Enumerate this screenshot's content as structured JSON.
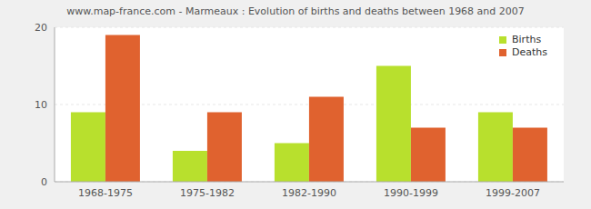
{
  "chart_data": {
    "type": "bar",
    "title": "www.map-france.com - Marmeaux : Evolution of births and deaths between 1968 and 2007",
    "categories": [
      "1968-1975",
      "1975-1982",
      "1982-1990",
      "1990-1999",
      "1999-2007"
    ],
    "series": [
      {
        "name": "Births",
        "color": "#b8e02d",
        "values": [
          9,
          4,
          5,
          15,
          9
        ]
      },
      {
        "name": "Deaths",
        "color": "#e0622f",
        "values": [
          19,
          9,
          11,
          7,
          7
        ]
      }
    ],
    "ylim": [
      0,
      20
    ],
    "yticks": [
      0,
      10,
      20
    ],
    "grid": true,
    "legend": "upper right"
  }
}
